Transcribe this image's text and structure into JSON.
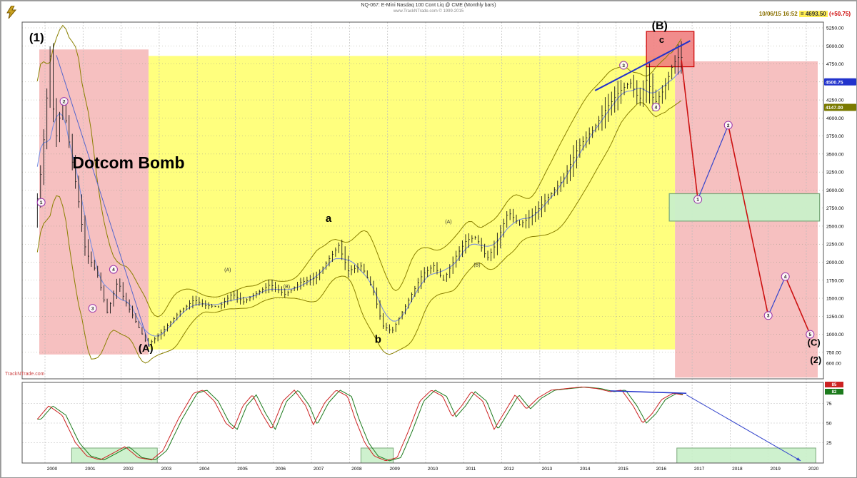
{
  "header": {
    "title": "NQ-067: E-Mini Nasdaq 100 Cont Liq @ CME (Monthly bars)",
    "subtitle": "www.TrackNTrade.com  © 1999-2015",
    "quote": {
      "time": "10/06/15 16:52",
      "price": "= 4693.50",
      "change": "(+50.75)"
    }
  },
  "watermark": "TrackNTrade.com",
  "colors": {
    "crash_zone": "#f5b5b5",
    "bull_zone": "#ffff70",
    "projection_zone": "#f5b5b5",
    "support_box": "#c9f0c9",
    "resistance_box": "#f08080",
    "bollinger": "#8a8000",
    "moving_average": "#7b8fe0",
    "projection_down": "#cc1111",
    "projection_up": "#3344cc",
    "osc_fast": "#cc2222",
    "osc_slow": "#1c7a1c"
  },
  "chart_data": {
    "type": "line",
    "style": "monthly-ohlc-bars-with-bollinger-bands",
    "title": "E-Mini Nasdaq 100 continuous monthly chart with Elliott wave count",
    "xlabel": "",
    "ylabel": "",
    "x_axis": {
      "ticks": [
        2000,
        2001,
        2002,
        2003,
        2004,
        2005,
        2006,
        2007,
        2008,
        2009,
        2010,
        2011,
        2012,
        2013,
        2014,
        2015,
        2016,
        2017,
        2018,
        2019,
        2020
      ]
    },
    "y_axis": {
      "range": [
        600,
        5250
      ],
      "ticks": [
        5250,
        5000,
        4750,
        4500,
        4250,
        4000,
        3750,
        3500,
        3250,
        3000,
        2750,
        2500,
        2250,
        2000,
        1750,
        1500,
        1250,
        1000,
        750,
        600
      ],
      "highlights": [
        {
          "value": "4500.75",
          "bg": "#2233cc",
          "fg": "#ffffff",
          "p": 4500.75
        },
        {
          "value": "4147.00",
          "bg": "#7a7a00",
          "fg": "#ffffff",
          "p": 4147
        }
      ]
    },
    "price_path": [
      [
        1999.8,
        2550
      ],
      [
        2000.0,
        3350
      ],
      [
        2000.22,
        4880
      ],
      [
        2000.35,
        3650
      ],
      [
        2000.55,
        4250
      ],
      [
        2000.75,
        3550
      ],
      [
        2000.95,
        2900
      ],
      [
        2001.15,
        2150
      ],
      [
        2001.45,
        1850
      ],
      [
        2001.72,
        1300
      ],
      [
        2002.0,
        1750
      ],
      [
        2002.15,
        1500
      ],
      [
        2002.4,
        1250
      ],
      [
        2002.78,
        850
      ],
      [
        2003.1,
        1000
      ],
      [
        2003.6,
        1300
      ],
      [
        2004.0,
        1480
      ],
      [
        2004.3,
        1400
      ],
      [
        2004.65,
        1380
      ],
      [
        2005.0,
        1560
      ],
      [
        2005.3,
        1450
      ],
      [
        2005.7,
        1590
      ],
      [
        2006.0,
        1690
      ],
      [
        2006.4,
        1550
      ],
      [
        2006.8,
        1720
      ],
      [
        2007.2,
        1780
      ],
      [
        2007.55,
        2050
      ],
      [
        2007.8,
        2230
      ],
      [
        2008.05,
        1880
      ],
      [
        2008.4,
        1950
      ],
      [
        2008.7,
        1620
      ],
      [
        2008.95,
        1120
      ],
      [
        2009.2,
        1040
      ],
      [
        2009.6,
        1440
      ],
      [
        2010.0,
        1830
      ],
      [
        2010.3,
        1950
      ],
      [
        2010.55,
        1750
      ],
      [
        2010.9,
        2100
      ],
      [
        2011.15,
        2300
      ],
      [
        2011.4,
        2350
      ],
      [
        2011.7,
        2050
      ],
      [
        2011.95,
        2270
      ],
      [
        2012.25,
        2700
      ],
      [
        2012.55,
        2520
      ],
      [
        2012.9,
        2650
      ],
      [
        2013.3,
        2900
      ],
      [
        2013.7,
        3150
      ],
      [
        2014.1,
        3600
      ],
      [
        2014.5,
        3850
      ],
      [
        2014.85,
        4150
      ],
      [
        2015.15,
        4350
      ],
      [
        2015.45,
        4500
      ],
      [
        2015.7,
        4250
      ],
      [
        2015.9,
        4550
      ],
      [
        2016.1,
        4200
      ],
      [
        2016.35,
        4400
      ],
      [
        2016.55,
        4700
      ],
      [
        2016.7,
        4850
      ],
      [
        2016.78,
        4800
      ]
    ],
    "zones": [
      {
        "name": "dotcom-crash-zone",
        "t1": 1999.85,
        "t2": 2002.72,
        "p1": 4950,
        "p2": 720,
        "fill": "#f5b5b5",
        "opacity": 0.85
      },
      {
        "name": "bull-market-zone",
        "t1": 2002.72,
        "t2": 2016.55,
        "p1": 4860,
        "p2": 790,
        "fill": "#ffff70",
        "opacity": 0.9
      },
      {
        "name": "projection-zone",
        "t1": 2016.55,
        "t2": 2020.3,
        "p1": 4785,
        "p2": 400,
        "fill": "#f5b5b5",
        "opacity": 0.85
      }
    ],
    "boxes": [
      {
        "name": "resistance-box",
        "t1": 2015.8,
        "t2": 2017.05,
        "p1": 5200,
        "p2": 4710,
        "fill": "#f08080",
        "stroke": "#cc0000",
        "opacity": 0.9
      },
      {
        "name": "support-box",
        "t1": 2016.4,
        "t2": 2020.35,
        "p1": 2950,
        "p2": 2570,
        "fill": "#c9f0c9",
        "stroke": "#7aa87a",
        "opacity": 0.95
      }
    ],
    "trendlines": [
      {
        "t": [
          2014.45,
          2016.95
        ],
        "p": [
          4380,
          5070
        ],
        "color": "#2233cc",
        "w": 2
      },
      {
        "t": [
          2000.3,
          2002.75
        ],
        "p": [
          4870,
          830
        ],
        "color": "#5566cc",
        "w": 1
      }
    ],
    "projection": {
      "points": [
        [
          2016.72,
          4800
        ],
        [
          2017.15,
          2870
        ],
        [
          2017.95,
          3900
        ],
        [
          2019.0,
          1260
        ],
        [
          2019.45,
          1800
        ],
        [
          2020.1,
          1000
        ]
      ],
      "wave_numbers": [
        "1",
        "2",
        "3",
        "4",
        "5"
      ],
      "down_color": "#cc1111",
      "up_color": "#3344cc"
    },
    "wave_labels": [
      {
        "text": "(1)",
        "t": 1999.78,
        "p": 5060,
        "size": 17
      },
      {
        "text": "Dotcom Bomb",
        "t": 2000.72,
        "p": 3300,
        "size": 23,
        "anchor": "start"
      },
      {
        "text": "(A)",
        "t": 2002.65,
        "p": 760,
        "size": 15
      },
      {
        "text": "a",
        "t": 2007.45,
        "p": 2560,
        "size": 15
      },
      {
        "text": "b",
        "t": 2008.75,
        "p": 880,
        "size": 15
      },
      {
        "text": "(B)",
        "t": 2016.15,
        "p": 5230,
        "size": 16
      },
      {
        "text": "c",
        "t": 2016.2,
        "p": 5040,
        "size": 13
      },
      {
        "text": "(C)",
        "t": 2020.2,
        "p": 840,
        "size": 13
      },
      {
        "text": "(2)",
        "t": 2020.25,
        "p": 600,
        "size": 13
      }
    ],
    "small_labels": [
      {
        "text": "(A)",
        "t": 2004.8,
        "p": 1870
      },
      {
        "text": "(B)",
        "t": 2006.35,
        "p": 1640
      },
      {
        "text": "(A)",
        "t": 2010.6,
        "p": 2540
      },
      {
        "text": "(B)",
        "t": 2011.35,
        "p": 1940
      }
    ],
    "circled_labels": [
      {
        "text": "1",
        "t": 1999.9,
        "p": 2830
      },
      {
        "text": "2",
        "t": 2000.5,
        "p": 4230
      },
      {
        "text": "3",
        "t": 2001.25,
        "p": 1360
      },
      {
        "text": "4",
        "t": 2001.8,
        "p": 1900
      },
      {
        "text": "3",
        "t": 2015.2,
        "p": 4730
      },
      {
        "text": "4",
        "t": 2016.05,
        "p": 4150
      }
    ],
    "oscillator": {
      "ticks": [
        75,
        50,
        25
      ],
      "path": [
        [
          1999.8,
          55
        ],
        [
          2000.1,
          72
        ],
        [
          2000.45,
          60
        ],
        [
          2000.8,
          25
        ],
        [
          2001.1,
          8
        ],
        [
          2001.45,
          3
        ],
        [
          2001.8,
          12
        ],
        [
          2002.1,
          20
        ],
        [
          2002.45,
          6
        ],
        [
          2002.8,
          3
        ],
        [
          2003.1,
          15
        ],
        [
          2003.5,
          55
        ],
        [
          2003.9,
          88
        ],
        [
          2004.15,
          92
        ],
        [
          2004.45,
          78
        ],
        [
          2004.75,
          50
        ],
        [
          2004.95,
          42
        ],
        [
          2005.2,
          72
        ],
        [
          2005.45,
          86
        ],
        [
          2005.7,
          62
        ],
        [
          2005.95,
          42
        ],
        [
          2006.25,
          78
        ],
        [
          2006.55,
          92
        ],
        [
          2006.85,
          72
        ],
        [
          2007.05,
          48
        ],
        [
          2007.35,
          76
        ],
        [
          2007.65,
          92
        ],
        [
          2007.95,
          84
        ],
        [
          2008.15,
          55
        ],
        [
          2008.4,
          25
        ],
        [
          2008.65,
          8
        ],
        [
          2008.95,
          2
        ],
        [
          2009.25,
          6
        ],
        [
          2009.55,
          40
        ],
        [
          2009.85,
          78
        ],
        [
          2010.15,
          92
        ],
        [
          2010.45,
          84
        ],
        [
          2010.7,
          58
        ],
        [
          2010.95,
          72
        ],
        [
          2011.2,
          90
        ],
        [
          2011.5,
          78
        ],
        [
          2011.8,
          42
        ],
        [
          2012.05,
          62
        ],
        [
          2012.35,
          86
        ],
        [
          2012.65,
          68
        ],
        [
          2012.95,
          82
        ],
        [
          2013.3,
          92
        ],
        [
          2013.7,
          94
        ],
        [
          2014.1,
          96
        ],
        [
          2014.5,
          94
        ],
        [
          2014.85,
          90
        ],
        [
          2015.15,
          92
        ],
        [
          2015.45,
          72
        ],
        [
          2015.7,
          50
        ],
        [
          2015.95,
          62
        ],
        [
          2016.2,
          80
        ],
        [
          2016.5,
          88
        ],
        [
          2016.75,
          86
        ]
      ],
      "oversold_boxes": [
        [
          2000.7,
          2002.95
        ],
        [
          2008.3,
          2009.15
        ],
        [
          2016.6,
          2020.25
        ]
      ],
      "divergence_line": {
        "t": [
          2014.85,
          2016.85
        ],
        "v": [
          91,
          88
        ]
      },
      "projection_line": {
        "t": [
          2016.85,
          2019.85
        ],
        "v": [
          86,
          2
        ]
      },
      "readouts": [
        {
          "value": "85",
          "bg": "#cc2222",
          "fg": "#ffffff"
        },
        {
          "value": "82",
          "bg": "#1c7a1c",
          "fg": "#ffffff"
        }
      ]
    }
  }
}
